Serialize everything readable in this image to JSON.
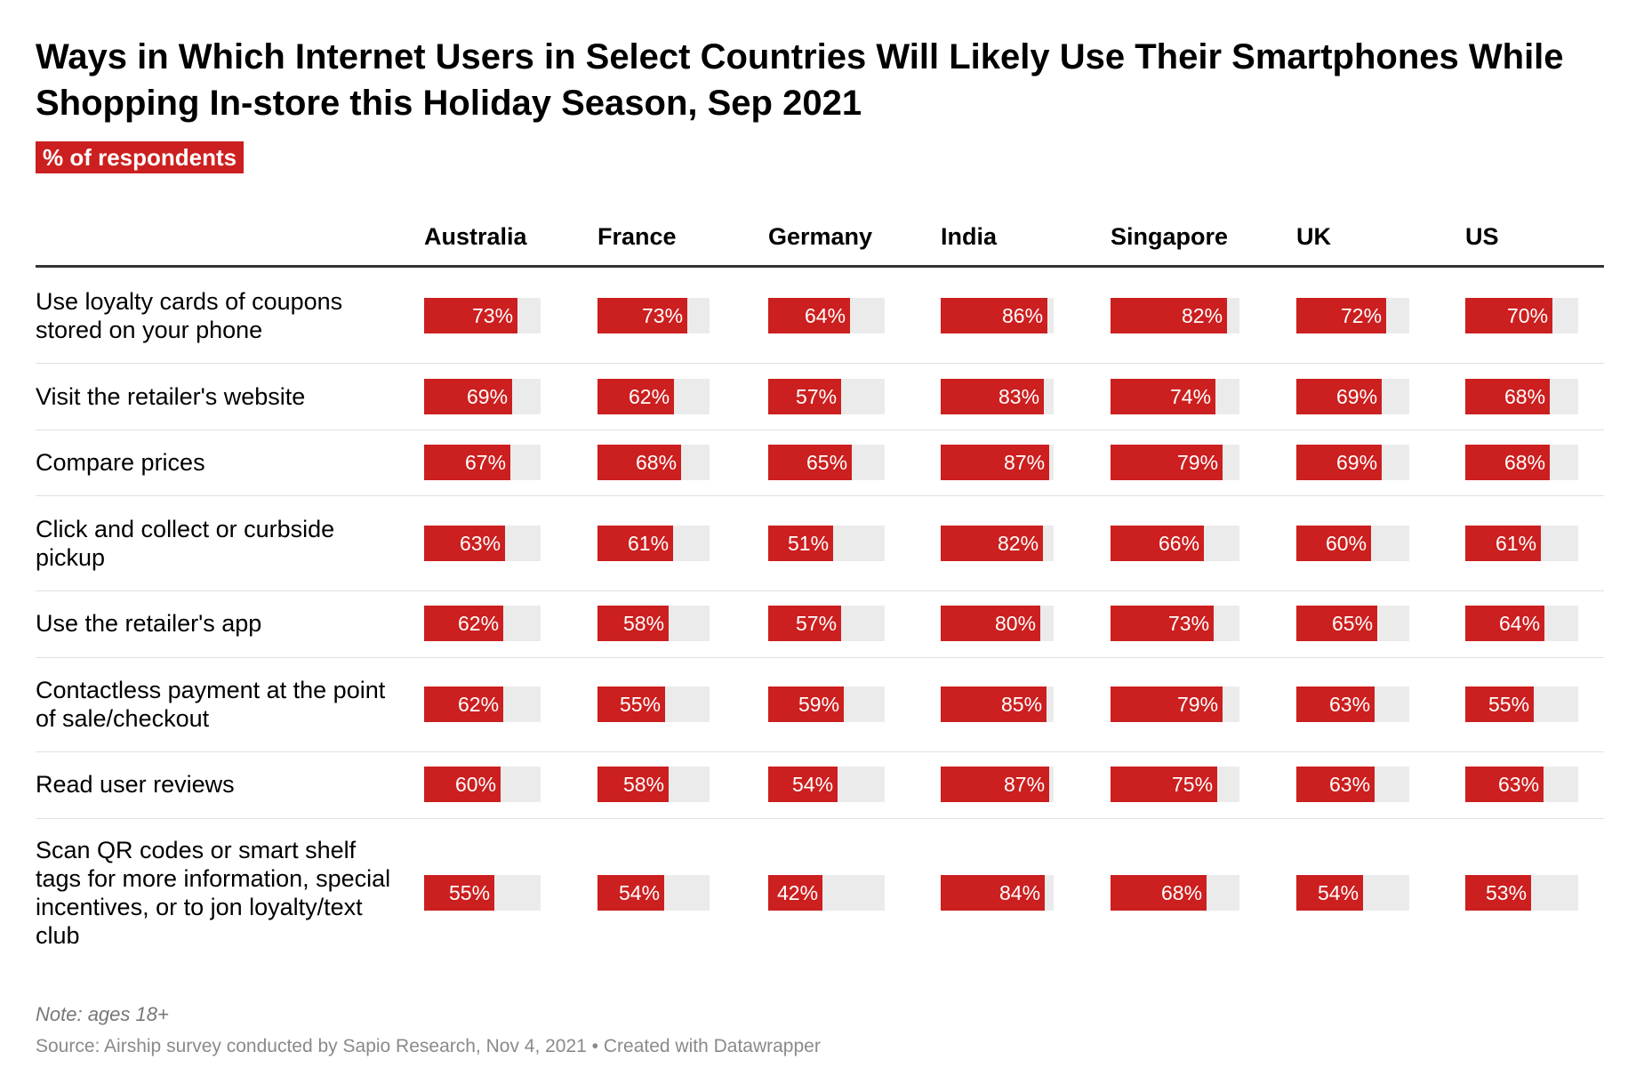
{
  "chart_data": {
    "type": "table",
    "title": "Ways in Which Internet Users in Select Countries Will Likely Use Their Smartphones While Shopping In-store this Holiday Season, Sep 2021",
    "subtitle": "% of respondents",
    "unit": "%",
    "columns": [
      "Australia",
      "France",
      "Germany",
      "India",
      "Singapore",
      "UK",
      "US"
    ],
    "rows": [
      {
        "label": "Use loyalty cards of coupons stored on your phone",
        "values": [
          73,
          73,
          64,
          86,
          82,
          72,
          70
        ]
      },
      {
        "label": "Visit the retailer's website",
        "values": [
          69,
          62,
          57,
          83,
          74,
          69,
          68
        ]
      },
      {
        "label": "Compare prices",
        "values": [
          67,
          68,
          65,
          87,
          79,
          69,
          68
        ]
      },
      {
        "label": "Click and collect or curbside pickup",
        "values": [
          63,
          61,
          51,
          82,
          66,
          60,
          61
        ]
      },
      {
        "label": "Use the retailer's app",
        "values": [
          62,
          58,
          57,
          80,
          73,
          65,
          64
        ]
      },
      {
        "label": "Contactless payment at the point of sale/checkout",
        "values": [
          62,
          55,
          59,
          85,
          79,
          63,
          55
        ]
      },
      {
        "label": "Read user reviews",
        "values": [
          60,
          58,
          54,
          87,
          75,
          63,
          63
        ]
      },
      {
        "label": "Scan QR codes or smart shelf tags for more information, special incentives, or to jon loyalty/text club",
        "values": [
          55,
          54,
          42,
          84,
          68,
          54,
          53
        ]
      }
    ],
    "note": "Note: ages 18+",
    "source": "Source: Airship survey conducted by Sapio Research, Nov 4, 2021 • Created with Datawrapper",
    "colors": {
      "bar": "#cc1f1f",
      "track": "#ebebeb"
    }
  }
}
